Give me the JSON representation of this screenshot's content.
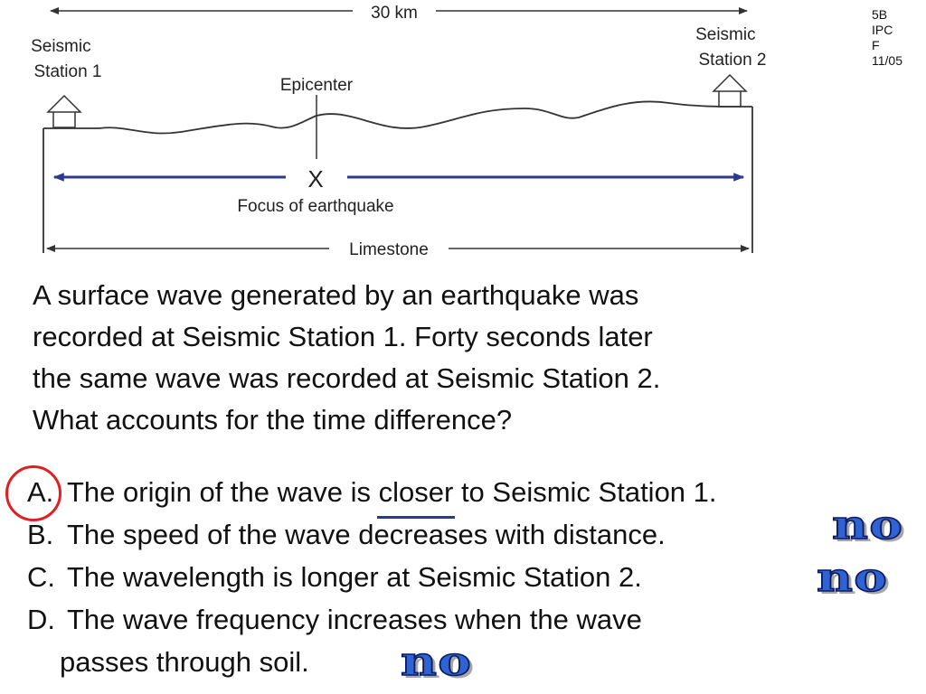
{
  "diagram": {
    "distance_label": "30 km",
    "station1": [
      "Seismic",
      "Station 1"
    ],
    "station2": [
      "Seismic",
      "Station 2"
    ],
    "epicenter_label": "Epicenter",
    "focus_mark": "X",
    "focus_label": "Focus of earthquake",
    "rock_label": "Limestone",
    "colors": {
      "arrows": "#2b3a8c",
      "lines": "#333333"
    }
  },
  "corner_tag": [
    "5B",
    "IPC",
    "F",
    "11/05"
  ],
  "question": {
    "lines": [
      "A surface wave generated by an earthquake was",
      "recorded at Seismic Station 1.  Forty seconds later",
      "the same wave was recorded at Seismic Station 2.",
      "What accounts for the time difference?"
    ]
  },
  "answers": {
    "a": {
      "letter": "A.",
      "before": "The origin of the wave is ",
      "underlined": "closer",
      "after": " to Seismic Station 1."
    },
    "b": {
      "letter": "B.",
      "text": "The speed of the wave decreases with distance."
    },
    "c": {
      "letter": "C.",
      "text": "The wavelength is longer at Seismic Station 2."
    },
    "d": {
      "letter": "D.",
      "text": "The wave frequency increases when the wave",
      "continuation": "passes through soil."
    }
  },
  "marks": {
    "circled_answer": "A",
    "no_label": "no",
    "crossed_out": [
      "B",
      "C",
      "D"
    ],
    "colors": {
      "circle": "#e02020",
      "no_fill": "#2f63d4",
      "no_outline": "#0c1a5e"
    }
  }
}
